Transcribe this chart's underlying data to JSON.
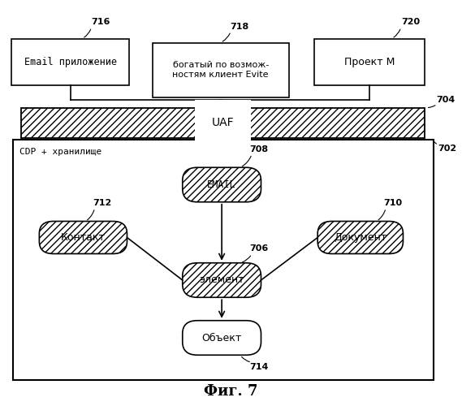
{
  "title": "Фиг. 7",
  "bg_color": "#ffffff",
  "label_716": "716",
  "label_718": "718",
  "label_720": "720",
  "label_704": "704",
  "label_702": "702",
  "label_708": "708",
  "label_712": "712",
  "label_710": "710",
  "label_706": "706",
  "label_714": "714",
  "box716_text": "Email приложение",
  "box718_text": "богатый по возмож-\nностям клиент Evite",
  "box720_text": "Проект М",
  "uaf_text": "UAF",
  "cdp_text": "CDP + хранилище",
  "email_text": "EMAIL",
  "kontakt_text": "Контакт",
  "dokument_text": "Документ",
  "element_text": "элемент",
  "object_text": "Объект"
}
